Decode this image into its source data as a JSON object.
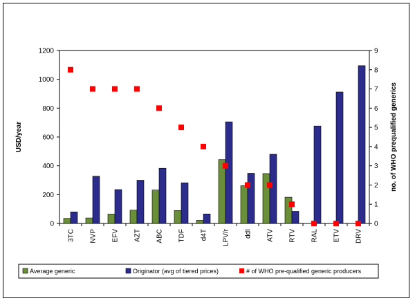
{
  "chart_data": {
    "type": "bar",
    "title": "",
    "categories": [
      "3TC",
      "NVP",
      "EFV",
      "AZT",
      "ABC",
      "TDF",
      "d4T",
      "LPV/r",
      "ddI",
      "ATV",
      "RTV",
      "RAL",
      "ETV",
      "DRV"
    ],
    "series": [
      {
        "name": "Average generic",
        "axis": "left",
        "kind": "bar",
        "color": "#6b8e3a",
        "values": [
          35,
          38,
          65,
          92,
          232,
          90,
          22,
          443,
          262,
          346,
          182,
          0,
          0,
          0
        ]
      },
      {
        "name": "Originator (avg of tiered prices)",
        "axis": "left",
        "kind": "bar",
        "color": "#2b2c8c",
        "values": [
          80,
          328,
          235,
          300,
          383,
          282,
          66,
          705,
          348,
          480,
          84,
          676,
          912,
          1095
        ]
      },
      {
        "name": "# of WHO pre-qualified generic producers",
        "axis": "right",
        "kind": "marker",
        "color": "#ff0000",
        "values": [
          8,
          7,
          7,
          7,
          6,
          5,
          4,
          3,
          2,
          2,
          1,
          0,
          0,
          0
        ]
      }
    ],
    "ylabel": "USD/year",
    "ylim": [
      0,
      1200
    ],
    "yticks": [
      0,
      200,
      400,
      600,
      800,
      1000,
      1200
    ],
    "y2label": "no. of WHO prequalified generics",
    "y2lim": [
      0,
      9
    ],
    "y2ticks": [
      0,
      1,
      2,
      3,
      4,
      5,
      6,
      7,
      8,
      9
    ],
    "legend_position": "bottom"
  }
}
